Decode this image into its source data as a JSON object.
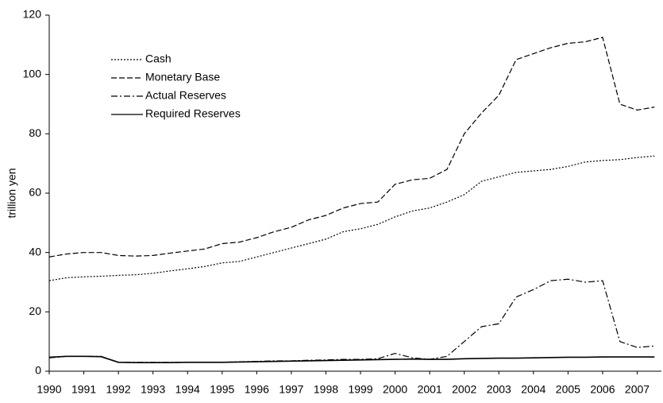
{
  "chart_data": {
    "type": "line",
    "ylabel": "trillion yen",
    "x": [
      1990,
      1990.5,
      1991,
      1991.5,
      1992,
      1992.5,
      1993,
      1993.5,
      1994,
      1994.5,
      1995,
      1995.5,
      1996,
      1996.5,
      1997,
      1997.5,
      1998,
      1998.5,
      1999,
      1999.5,
      2000,
      2000.5,
      2001,
      2001.5,
      2002,
      2002.5,
      2003,
      2003.5,
      2004,
      2004.5,
      2005,
      2005.5,
      2006,
      2006.5,
      2007,
      2007.5
    ],
    "series": [
      {
        "name": "Cash",
        "color": "#000000",
        "dash": "dotted",
        "values": [
          30.5,
          31.5,
          31.8,
          32,
          32.3,
          32.5,
          33,
          33.8,
          34.5,
          35.3,
          36.5,
          37,
          38.5,
          40,
          41.5,
          43,
          44.5,
          47,
          48,
          49.5,
          52,
          54,
          55,
          57,
          59.5,
          64,
          65.5,
          67,
          67.5,
          68,
          69,
          70.5,
          71,
          71.3,
          72,
          72.5
        ]
      },
      {
        "name": "Monetary Base",
        "color": "#000000",
        "dash": "dashed",
        "values": [
          38.5,
          39.5,
          40,
          40,
          39,
          38.8,
          39,
          39.8,
          40.5,
          41.2,
          43,
          43.5,
          45,
          47,
          48.5,
          51,
          52.5,
          55,
          56.5,
          57,
          63,
          64.5,
          65,
          68,
          80,
          87,
          93,
          105,
          107,
          109,
          110.5,
          111,
          112.5,
          90,
          88,
          89
        ]
      },
      {
        "name": "Actual Reserves",
        "color": "#000000",
        "dash": "dashdot",
        "values": [
          4.5,
          5,
          5,
          5,
          3,
          3,
          3,
          3,
          3,
          3,
          3,
          3.2,
          3.3,
          3.5,
          3.5,
          3.7,
          3.8,
          4,
          4,
          4.2,
          6,
          4.5,
          4,
          5,
          10,
          15,
          16,
          25,
          27.5,
          30.5,
          31,
          30,
          30.5,
          10,
          8,
          8.5
        ]
      },
      {
        "name": "Required Reserves",
        "color": "#000000",
        "dash": "solid",
        "values": [
          4.7,
          5,
          5,
          4.9,
          3,
          2.9,
          2.9,
          2.9,
          3,
          3,
          3,
          3.1,
          3.2,
          3.3,
          3.4,
          3.5,
          3.6,
          3.7,
          3.8,
          3.9,
          4,
          4.1,
          4,
          4,
          4.2,
          4.3,
          4.4,
          4.4,
          4.5,
          4.6,
          4.7,
          4.7,
          4.8,
          4.8,
          4.8,
          4.8
        ]
      }
    ],
    "xlim": [
      1990,
      2007.7
    ],
    "xticks": [
      1990,
      1991,
      1992,
      1993,
      1994,
      1995,
      1996,
      1997,
      1998,
      1999,
      2000,
      2001,
      2002,
      2003,
      2004,
      2005,
      2006,
      2007
    ],
    "ylim": [
      0,
      120
    ],
    "yticks": [
      0,
      20,
      40,
      60,
      80,
      100,
      120
    ],
    "legend": "upper-left",
    "grid": false
  }
}
